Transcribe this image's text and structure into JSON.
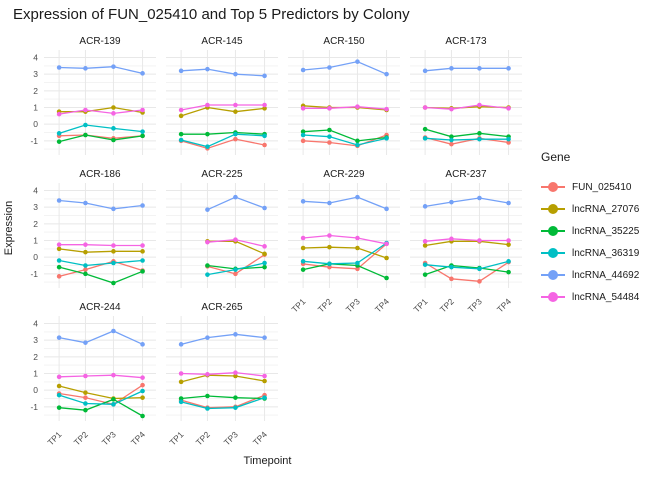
{
  "title": "Expression of FUN_025410 and Top 5 Predictors by Colony",
  "chart_data": {
    "type": "line",
    "facet_by": "Colony",
    "title": "Expression of FUN_025410 and Top 5 Predictors by Colony",
    "xlabel": "Timepoint",
    "ylabel": "Expression",
    "legend_title": "Gene",
    "legend_position": "right",
    "grid": true,
    "categories": [
      "TP1",
      "TP2",
      "TP3",
      "TP4"
    ],
    "yticks": [
      4,
      3,
      2,
      1,
      0,
      -1
    ],
    "ylim": [
      -1.85,
      4.45
    ],
    "genes": [
      {
        "name": "FUN_025410",
        "color": "#F8766D"
      },
      {
        "name": "lncRNA_27076",
        "color": "#B79F00"
      },
      {
        "name": "lncRNA_35225",
        "color": "#00BA38"
      },
      {
        "name": "lncRNA_36319",
        "color": "#00BFC4"
      },
      {
        "name": "lncRNA_44692",
        "color": "#74A1F7"
      },
      {
        "name": "lncRNA_54484",
        "color": "#F564E3"
      }
    ],
    "facets": [
      {
        "name": "ACR-139",
        "values": {
          "FUN_025410": [
            -0.7,
            -0.65,
            -0.85,
            -0.7
          ],
          "lncRNA_27076": [
            0.75,
            0.75,
            1.0,
            0.7
          ],
          "lncRNA_35225": [
            -1.05,
            -0.65,
            -0.95,
            -0.7
          ],
          "lncRNA_36319": [
            -0.55,
            -0.05,
            -0.25,
            -0.45
          ],
          "lncRNA_44692": [
            3.4,
            3.35,
            3.45,
            3.05
          ],
          "lncRNA_54484": [
            0.6,
            0.85,
            0.65,
            0.85
          ]
        }
      },
      {
        "name": "ACR-145",
        "values": {
          "FUN_025410": [
            -1.0,
            -1.45,
            -0.9,
            -1.25
          ],
          "lncRNA_27076": [
            0.5,
            1.0,
            0.75,
            0.95
          ],
          "lncRNA_35225": [
            -0.6,
            -0.6,
            -0.5,
            -0.6
          ],
          "lncRNA_36319": [
            -0.95,
            -1.35,
            -0.6,
            -0.7
          ],
          "lncRNA_44692": [
            3.2,
            3.3,
            3.0,
            2.9
          ],
          "lncRNA_54484": [
            0.85,
            1.15,
            1.15,
            1.15
          ]
        }
      },
      {
        "name": "ACR-150",
        "values": {
          "FUN_025410": [
            -1.0,
            -1.1,
            -1.3,
            -0.65
          ],
          "lncRNA_27076": [
            1.1,
            1.0,
            1.0,
            0.85
          ],
          "lncRNA_35225": [
            -0.45,
            -0.35,
            -1.0,
            -0.8
          ],
          "lncRNA_36319": [
            -0.65,
            -0.75,
            -1.25,
            -0.85
          ],
          "lncRNA_44692": [
            3.25,
            3.4,
            3.75,
            3.0
          ],
          "lncRNA_54484": [
            0.95,
            0.95,
            1.05,
            0.9
          ]
        }
      },
      {
        "name": "ACR-173",
        "values": {
          "FUN_025410": [
            -0.8,
            -1.2,
            -0.85,
            -1.1
          ],
          "lncRNA_27076": [
            1.0,
            0.95,
            1.05,
            1.0
          ],
          "lncRNA_35225": [
            -0.3,
            -0.75,
            -0.55,
            -0.75
          ],
          "lncRNA_36319": [
            -0.85,
            -0.95,
            -0.9,
            -0.9
          ],
          "lncRNA_44692": [
            3.2,
            3.35,
            3.35,
            3.35
          ],
          "lncRNA_54484": [
            1.0,
            0.9,
            1.15,
            0.95
          ]
        }
      },
      {
        "name": "ACR-186",
        "values": {
          "FUN_025410": [
            -1.15,
            -0.75,
            -0.25,
            -0.8
          ],
          "lncRNA_27076": [
            0.5,
            0.3,
            0.35,
            0.35
          ],
          "lncRNA_35225": [
            -0.6,
            -1.0,
            -1.55,
            -0.85
          ],
          "lncRNA_36319": [
            -0.2,
            -0.5,
            -0.35,
            -0.2
          ],
          "lncRNA_44692": [
            3.4,
            3.25,
            2.9,
            3.1
          ],
          "lncRNA_54484": [
            0.75,
            0.75,
            0.7,
            0.7
          ]
        }
      },
      {
        "name": "ACR-225",
        "values": {
          "FUN_025410": [
            null,
            -0.55,
            -1.0,
            0.15
          ],
          "lncRNA_27076": [
            null,
            0.95,
            0.95,
            0.2
          ],
          "lncRNA_35225": [
            null,
            -0.5,
            -0.7,
            -0.6
          ],
          "lncRNA_36319": [
            null,
            -1.05,
            -0.75,
            -0.35
          ],
          "lncRNA_44692": [
            null,
            2.85,
            3.6,
            2.95
          ],
          "lncRNA_54484": [
            null,
            0.9,
            1.05,
            0.65
          ]
        }
      },
      {
        "name": "ACR-229",
        "values": {
          "FUN_025410": [
            -0.4,
            -0.6,
            -0.7,
            0.8
          ],
          "lncRNA_27076": [
            0.55,
            0.6,
            0.55,
            -0.05
          ],
          "lncRNA_35225": [
            -0.75,
            -0.4,
            -0.5,
            -1.25
          ],
          "lncRNA_36319": [
            -0.25,
            -0.4,
            -0.35,
            0.85
          ],
          "lncRNA_44692": [
            3.35,
            3.25,
            3.6,
            2.9
          ],
          "lncRNA_54484": [
            1.15,
            1.3,
            1.15,
            0.8
          ]
        }
      },
      {
        "name": "ACR-237",
        "values": {
          "FUN_025410": [
            -0.35,
            -1.3,
            -1.45,
            -0.3
          ],
          "lncRNA_27076": [
            0.7,
            0.95,
            0.95,
            0.75
          ],
          "lncRNA_35225": [
            -1.05,
            -0.5,
            -0.65,
            -0.9
          ],
          "lncRNA_36319": [
            -0.45,
            -0.6,
            -0.7,
            -0.25
          ],
          "lncRNA_44692": [
            3.05,
            3.3,
            3.55,
            3.25
          ],
          "lncRNA_54484": [
            0.95,
            1.1,
            1.0,
            1.0
          ]
        }
      },
      {
        "name": "ACR-244",
        "values": {
          "FUN_025410": [
            -0.2,
            -0.45,
            -0.85,
            0.3
          ],
          "lncRNA_27076": [
            0.25,
            -0.15,
            -0.5,
            -0.45
          ],
          "lncRNA_35225": [
            -1.05,
            -1.2,
            -0.55,
            -1.55
          ],
          "lncRNA_36319": [
            -0.3,
            -0.8,
            -0.85,
            -0.05
          ],
          "lncRNA_44692": [
            3.15,
            2.85,
            3.55,
            2.75
          ],
          "lncRNA_54484": [
            0.8,
            0.85,
            0.9,
            0.75
          ]
        }
      },
      {
        "name": "ACR-265",
        "values": {
          "FUN_025410": [
            -0.6,
            -1.05,
            -1.0,
            -0.3
          ],
          "lncRNA_27076": [
            0.5,
            0.9,
            0.85,
            0.55
          ],
          "lncRNA_35225": [
            -0.5,
            -0.35,
            -0.45,
            -0.5
          ],
          "lncRNA_36319": [
            -0.7,
            -1.1,
            -1.05,
            -0.45
          ],
          "lncRNA_44692": [
            2.75,
            3.15,
            3.35,
            3.15
          ],
          "lncRNA_54484": [
            1.0,
            0.95,
            1.05,
            0.85
          ]
        }
      }
    ],
    "colors": {
      "grid_major": "#E8E8E8",
      "grid_minor": "#F3F3F3",
      "tick_text": "#4D4D4D",
      "strip_text": "#1A1A1A"
    }
  }
}
